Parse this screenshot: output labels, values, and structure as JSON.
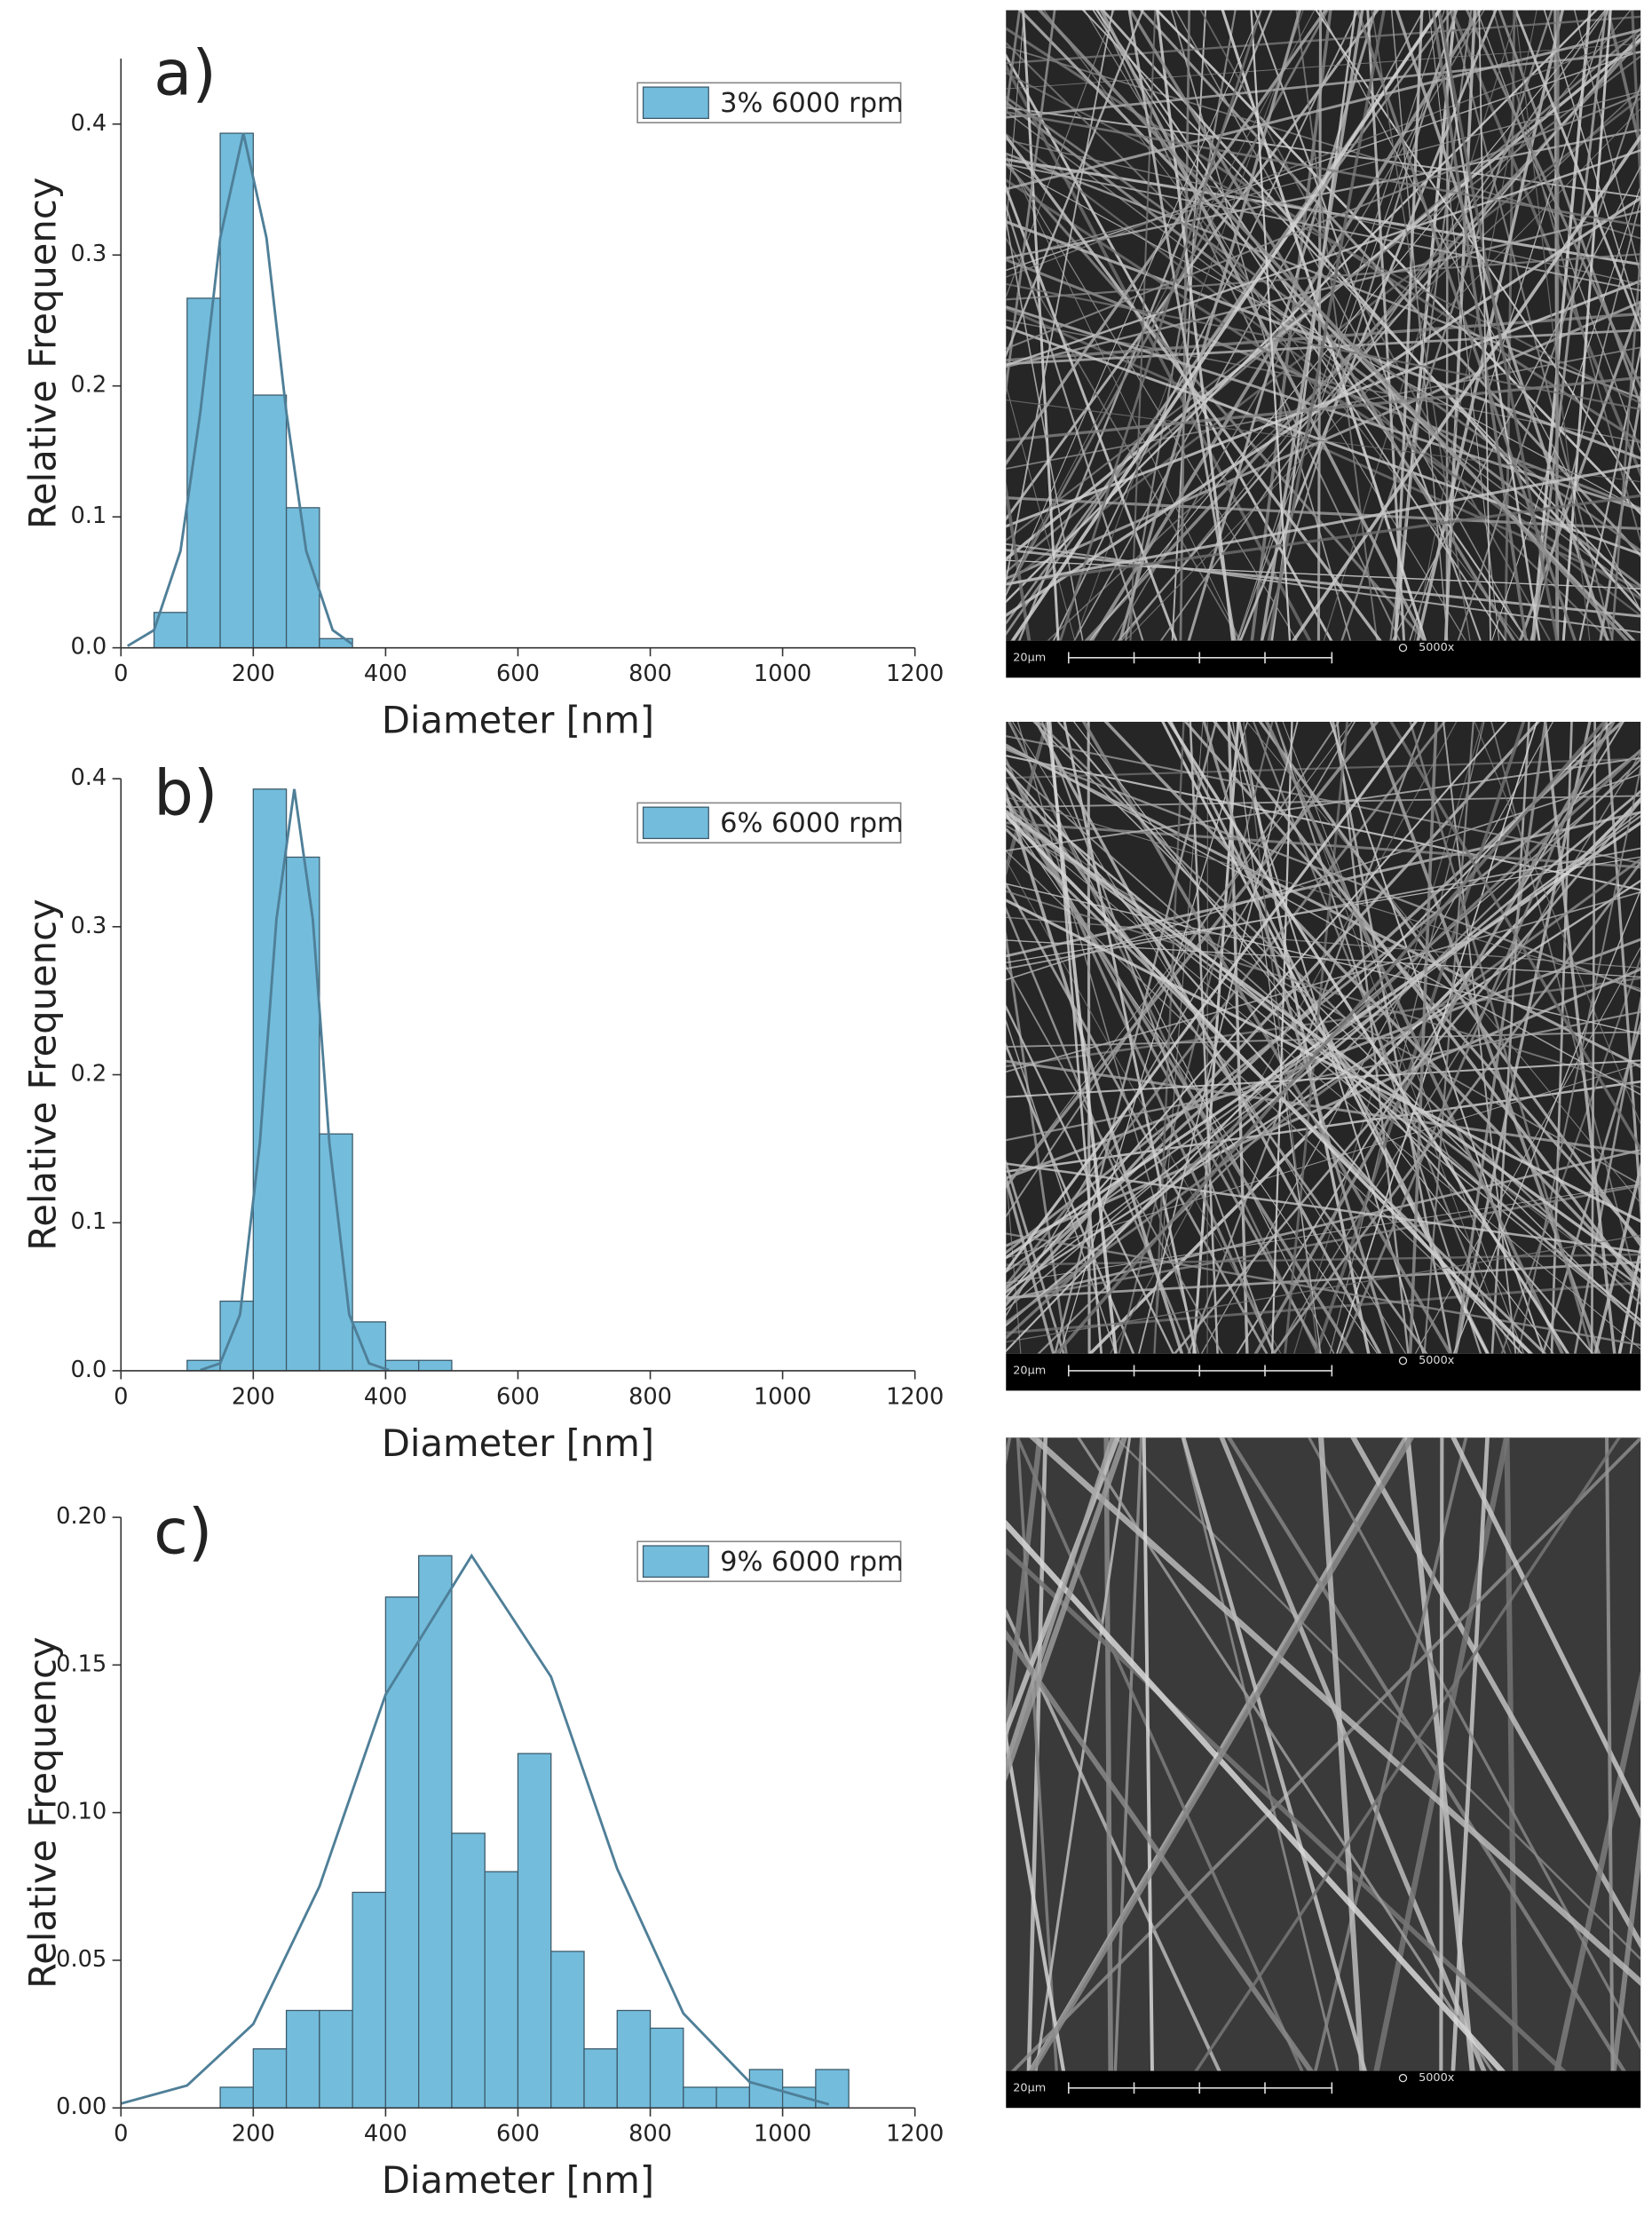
{
  "chart_data": [
    {
      "type": "histogram",
      "panel_label": "a)",
      "xlabel": "Diameter [nm]",
      "ylabel": "Relative Frequency",
      "xlim": [
        0,
        1200
      ],
      "xticks": [
        0,
        200,
        400,
        600,
        800,
        1000,
        1200
      ],
      "ylim": [
        0,
        0.45
      ],
      "yticks": [
        {
          "value": 0,
          "label": "0.0"
        },
        0.1,
        0.2,
        0.3,
        0.4
      ],
      "bins": [
        50,
        100,
        150,
        200,
        250,
        300,
        350
      ],
      "series": [
        {
          "name": "3% 6000 rpm",
          "color": "#73bcdc",
          "values": [
            0.027,
            0.267,
            0.393,
            0.193,
            0.107,
            0.007
          ]
        }
      ],
      "fit": {
        "color": "#4f7f98",
        "x": [
          10,
          50,
          90,
          120,
          150,
          185,
          220,
          250,
          280,
          320,
          350
        ],
        "values": [
          0.0014,
          0.0135,
          0.074,
          0.18,
          0.313,
          0.393,
          0.313,
          0.18,
          0.074,
          0.0135,
          0.0026
        ]
      }
    },
    {
      "type": "histogram",
      "panel_label": "b)",
      "xlabel": "Diameter [nm]",
      "ylabel": "Relative Frequency",
      "xlim": [
        0,
        1200
      ],
      "xticks": [
        0,
        200,
        400,
        600,
        800,
        1000,
        1200
      ],
      "ylim": [
        0,
        0.4
      ],
      "yticks": [
        {
          "value": 0,
          "label": "0.0"
        },
        0.1,
        0.2,
        0.3,
        0.4
      ],
      "bins": [
        100,
        150,
        200,
        250,
        300,
        350,
        400,
        450,
        500
      ],
      "series": [
        {
          "name": "6% 6000 rpm",
          "color": "#73bcdc",
          "values": [
            0.007,
            0.047,
            0.393,
            0.347,
            0.16,
            0.033,
            0.007,
            0.007
          ]
        }
      ],
      "fit": {
        "color": "#4f7f98",
        "x": [
          120,
          150,
          180,
          210,
          235,
          262,
          290,
          315,
          345,
          375,
          405
        ],
        "values": [
          0.0004,
          0.005,
          0.038,
          0.154,
          0.305,
          0.393,
          0.305,
          0.154,
          0.038,
          0.005,
          0.0004
        ]
      }
    },
    {
      "type": "histogram",
      "panel_label": "c)",
      "xlabel": "Diameter [nm]",
      "ylabel": "Relative Frequency",
      "xlim": [
        0,
        1200
      ],
      "xticks": [
        0,
        200,
        400,
        600,
        800,
        1000,
        1200
      ],
      "ylim": [
        0,
        0.2
      ],
      "yticks": [
        {
          "value": 0,
          "label": "0.00"
        },
        0.05,
        {
          "value": 0.1,
          "label": "0.10"
        },
        0.15,
        {
          "value": 0.2,
          "label": "0.20"
        }
      ],
      "bins": [
        150,
        200,
        250,
        300,
        350,
        400,
        450,
        500,
        550,
        600,
        650,
        700,
        750,
        800,
        850,
        900,
        950,
        1000,
        1050,
        1100
      ],
      "series": [
        {
          "name": "9% 6000 rpm",
          "color": "#73bcdc",
          "values": [
            0.007,
            0.02,
            0.033,
            0.033,
            0.073,
            0.173,
            0.187,
            0.093,
            0.08,
            0.12,
            0.053,
            0.02,
            0.033,
            0.027,
            0.007,
            0.007,
            0.013,
            0.007,
            0.013
          ]
        }
      ],
      "fit": {
        "color": "#4f7f98",
        "x": [
          0,
          100,
          200,
          300,
          400,
          530,
          650,
          750,
          850,
          950,
          1070
        ],
        "values": [
          0.00145,
          0.0076,
          0.0284,
          0.075,
          0.14,
          0.187,
          0.146,
          0.081,
          0.032,
          0.0088,
          0.0012
        ]
      }
    }
  ],
  "images": [
    {
      "scale_label": "20μm",
      "magnification": "5000x"
    },
    {
      "scale_label": "20μm",
      "magnification": "5000x"
    },
    {
      "scale_label": "20μm",
      "magnification": "5000x"
    }
  ]
}
